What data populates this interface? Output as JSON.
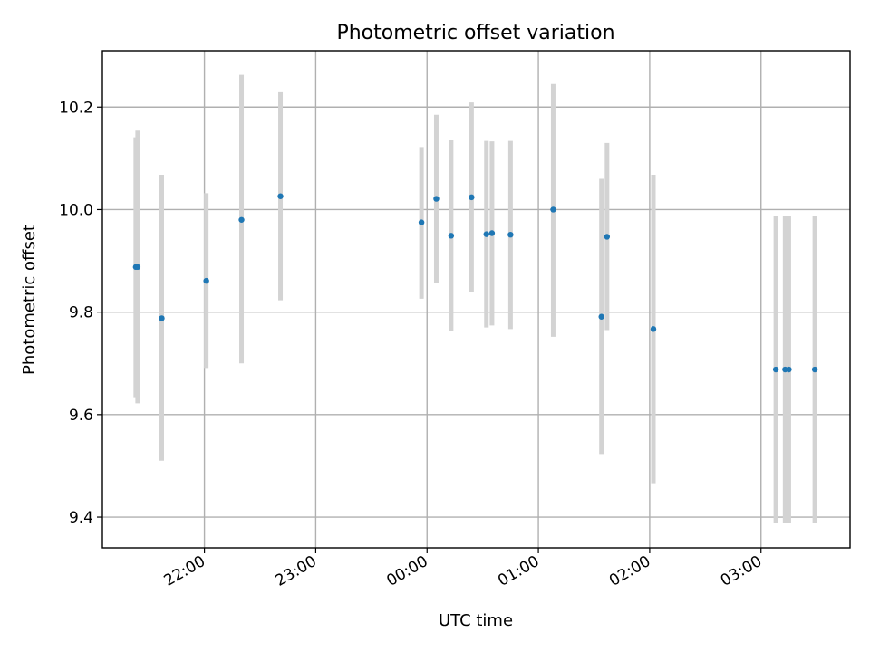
{
  "chart_data": {
    "type": "scatter",
    "title": "Photometric offset variation",
    "xlabel": "UTC time",
    "ylabel": "Photometric offset",
    "grid": true,
    "xlim": [
      "21:05",
      "03:48"
    ],
    "ylim": [
      9.34,
      10.31
    ],
    "x_ticks": [
      "22:00",
      "23:00",
      "00:00",
      "01:00",
      "02:00",
      "03:00"
    ],
    "y_ticks": [
      "9.4",
      "9.6",
      "9.8",
      "10.0",
      "10.2"
    ],
    "marker_color": "#1f77b4",
    "errorbar_color": "#d3d3d3",
    "points": [
      {
        "time": "21:23",
        "y": 9.888,
        "err_low": 9.634,
        "err_high": 10.141
      },
      {
        "time": "21:24",
        "y": 9.888,
        "err_low": 9.622,
        "err_high": 10.154
      },
      {
        "time": "21:37",
        "y": 9.788,
        "err_low": 9.51,
        "err_high": 10.068
      },
      {
        "time": "22:01",
        "y": 9.861,
        "err_low": 9.691,
        "err_high": 10.032
      },
      {
        "time": "22:20",
        "y": 9.98,
        "err_low": 9.7,
        "err_high": 10.263
      },
      {
        "time": "22:41",
        "y": 10.026,
        "err_low": 9.823,
        "err_high": 10.229
      },
      {
        "time": "23:57",
        "y": 9.975,
        "err_low": 9.826,
        "err_high": 10.122
      },
      {
        "time": "00:05",
        "y": 10.021,
        "err_low": 9.856,
        "err_high": 10.185
      },
      {
        "time": "00:13",
        "y": 9.949,
        "err_low": 9.763,
        "err_high": 10.135
      },
      {
        "time": "00:24",
        "y": 10.024,
        "err_low": 9.84,
        "err_high": 10.209
      },
      {
        "time": "00:32",
        "y": 9.952,
        "err_low": 9.77,
        "err_high": 10.134
      },
      {
        "time": "00:35",
        "y": 9.954,
        "err_low": 9.774,
        "err_high": 10.133
      },
      {
        "time": "00:45",
        "y": 9.951,
        "err_low": 9.767,
        "err_high": 10.134
      },
      {
        "time": "01:08",
        "y": 10.0,
        "err_low": 9.752,
        "err_high": 10.245
      },
      {
        "time": "01:34",
        "y": 9.791,
        "err_low": 9.523,
        "err_high": 10.06
      },
      {
        "time": "01:37",
        "y": 9.947,
        "err_low": 9.765,
        "err_high": 10.13
      },
      {
        "time": "02:02",
        "y": 9.767,
        "err_low": 9.466,
        "err_high": 10.068
      },
      {
        "time": "03:08",
        "y": 9.688,
        "err_low": 9.388,
        "err_high": 9.988
      },
      {
        "time": "03:13",
        "y": 9.688,
        "err_low": 9.388,
        "err_high": 9.988
      },
      {
        "time": "03:15",
        "y": 9.688,
        "err_low": 9.388,
        "err_high": 9.988
      },
      {
        "time": "03:29",
        "y": 9.688,
        "err_low": 9.388,
        "err_high": 9.988
      }
    ]
  }
}
